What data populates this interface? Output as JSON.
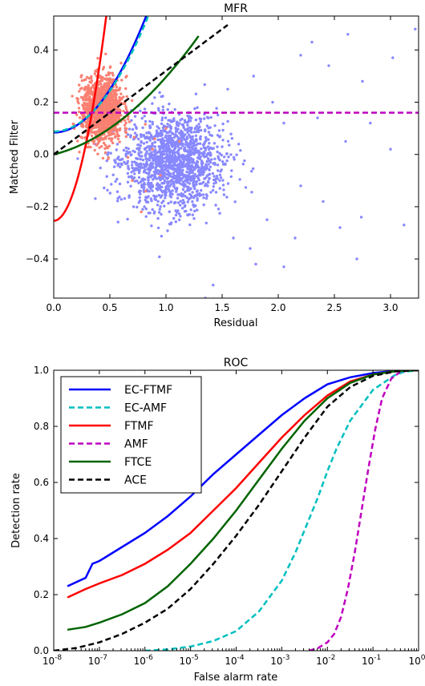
{
  "chart_data": [
    {
      "type": "scatter",
      "title": "MFR",
      "xlabel": "Residual",
      "ylabel": "Matched Filter",
      "xlim": [
        0,
        3.25
      ],
      "ylim": [
        -0.55,
        0.53
      ],
      "xticks": [
        0.0,
        0.5,
        1.0,
        1.5,
        2.0,
        2.5,
        3.0
      ],
      "xtick_labels": [
        "0.0",
        "0.5",
        "1.0",
        "1.5",
        "2.0",
        "2.5",
        "3.0"
      ],
      "yticks": [
        -0.4,
        -0.2,
        0.0,
        0.2,
        0.4
      ],
      "ytick_labels": [
        "−0.4",
        "−0.2",
        "0.0",
        "0.2",
        "0.4"
      ],
      "grid": false,
      "scatter_series": [
        {
          "color": "#8888ff",
          "center": [
            1.0,
            -0.03
          ],
          "spread": [
            0.22,
            0.09
          ],
          "count": 1500,
          "outliers": [
            [
              1.55,
              0.25
            ],
            [
              1.78,
              0.3
            ],
            [
              2.2,
              0.38
            ],
            [
              2.3,
              0.43
            ],
            [
              2.45,
              0.34
            ],
            [
              2.62,
              0.46
            ],
            [
              2.75,
              0.28
            ],
            [
              3.02,
              0.37
            ],
            [
              3.22,
              0.48
            ],
            [
              1.95,
              0.2
            ],
            [
              2.05,
              0.12
            ],
            [
              2.35,
              0.14
            ],
            [
              2.6,
              0.05
            ],
            [
              2.82,
              0.12
            ],
            [
              3.0,
              0.02
            ],
            [
              2.2,
              -0.12
            ],
            [
              2.4,
              -0.18
            ],
            [
              2.74,
              -0.24
            ],
            [
              3.12,
              -0.27
            ],
            [
              2.55,
              -0.28
            ],
            [
              1.6,
              -0.32
            ],
            [
              1.75,
              -0.36
            ],
            [
              1.8,
              -0.42
            ],
            [
              2.05,
              -0.43
            ],
            [
              2.7,
              -0.4
            ],
            [
              1.42,
              -0.5
            ],
            [
              1.35,
              -0.55
            ],
            [
              2.15,
              -0.32
            ],
            [
              1.9,
              -0.25
            ]
          ]
        },
        {
          "color": "#fa8072",
          "center": [
            0.43,
            0.17
          ],
          "spread": [
            0.09,
            0.06
          ],
          "count": 1300,
          "outliers": [
            [
              0.9,
              0.06
            ],
            [
              0.95,
              -0.08
            ],
            [
              0.82,
              -0.14
            ],
            [
              0.78,
              -0.22
            ],
            [
              0.7,
              -0.1
            ],
            [
              0.88,
              0.02
            ],
            [
              1.0,
              0.1
            ],
            [
              1.12,
              0.05
            ],
            [
              0.65,
              0.3
            ],
            [
              0.6,
              0.35
            ]
          ]
        }
      ],
      "reference_lines": [
        {
          "name": "EC-FTMF",
          "kind": "ellipse",
          "a": 0.5,
          "b": 0.084,
          "dashed": false,
          "color": "#0000ff"
        },
        {
          "name": "EC-AMF",
          "kind": "ellipse",
          "a": 0.5,
          "b": 0.088,
          "dashed": true,
          "color": "#00bfbf",
          "xrange": [
            0,
            1.78
          ]
        },
        {
          "name": "FTMF",
          "kind": "ellipse",
          "a": 0.5,
          "b": -0.254,
          "dashed": false,
          "color": "#ff0000"
        },
        {
          "name": "AMF",
          "kind": "constant",
          "y": 0.16,
          "dashed": true,
          "color": "#bf00bf"
        },
        {
          "name": "FTCE",
          "kind": "quad",
          "a": 0.5,
          "b": 0.0,
          "dashed": false,
          "color": "#006400"
        },
        {
          "name": "ACE",
          "kind": "linear",
          "slope": 0.32,
          "dashed": true,
          "color": "#000000"
        }
      ]
    },
    {
      "type": "line",
      "title": "ROC",
      "xlabel": "False alarm rate",
      "ylabel": "Detection rate",
      "xscale": "log",
      "xlim": [
        1e-08,
        1
      ],
      "ylim": [
        0,
        1.0
      ],
      "xticks": [
        -8,
        -7,
        -6,
        -5,
        -4,
        -3,
        -2,
        -1,
        0
      ],
      "xtick_labels": [
        [
          "10",
          "-8"
        ],
        [
          "10",
          "-7"
        ],
        [
          "10",
          "-6"
        ],
        [
          "10",
          "-5"
        ],
        [
          "10",
          "-4"
        ],
        [
          "10",
          "-3"
        ],
        [
          "10",
          "-2"
        ],
        [
          "10",
          "-1"
        ],
        [
          "10",
          "0"
        ]
      ],
      "yticks": [
        0.0,
        0.2,
        0.4,
        0.6,
        0.8,
        1.0
      ],
      "ytick_labels": [
        "0.0",
        "0.2",
        "0.4",
        "0.6",
        "0.8",
        "1.0"
      ],
      "legend": "upper-left",
      "series": [
        {
          "name": "EC-FTMF",
          "color": "#0000ff",
          "dashed": false,
          "x": [
            -7.7,
            -7.3,
            -7.15,
            -7.0,
            -6.8,
            -6.5,
            -6.0,
            -5.5,
            -5.0,
            -4.5,
            -4.0,
            -3.5,
            -3.0,
            -2.5,
            -2.0,
            -1.5,
            -1.0,
            -0.5,
            0
          ],
          "y": [
            0.23,
            0.26,
            0.31,
            0.32,
            0.34,
            0.37,
            0.42,
            0.48,
            0.55,
            0.63,
            0.7,
            0.77,
            0.84,
            0.9,
            0.95,
            0.975,
            0.99,
            0.998,
            1.0
          ]
        },
        {
          "name": "EC-AMF",
          "color": "#00bfbf",
          "dashed": true,
          "x": [
            -6.0,
            -5.5,
            -5.0,
            -4.5,
            -4.0,
            -3.5,
            -3.0,
            -2.7,
            -2.5,
            -2.2,
            -2.0,
            -1.8,
            -1.5,
            -1.0,
            -0.5,
            -0.3,
            0
          ],
          "y": [
            0.0,
            0.005,
            0.015,
            0.035,
            0.07,
            0.14,
            0.25,
            0.35,
            0.43,
            0.55,
            0.64,
            0.72,
            0.82,
            0.93,
            0.985,
            0.995,
            1.0
          ]
        },
        {
          "name": "FTMF",
          "color": "#ff0000",
          "dashed": false,
          "x": [
            -7.7,
            -7.3,
            -7.0,
            -6.5,
            -6.0,
            -5.5,
            -5.0,
            -4.5,
            -4.0,
            -3.5,
            -3.0,
            -2.5,
            -2.0,
            -1.5,
            -1.0,
            -0.5,
            -0.3,
            0
          ],
          "y": [
            0.19,
            0.22,
            0.24,
            0.27,
            0.31,
            0.36,
            0.42,
            0.5,
            0.58,
            0.67,
            0.76,
            0.84,
            0.91,
            0.96,
            0.985,
            0.997,
            0.999,
            1.0
          ]
        },
        {
          "name": "AMF",
          "color": "#bf00bf",
          "dashed": true,
          "x": [
            -2.4,
            -2.2,
            -2.0,
            -1.85,
            -1.7,
            -1.55,
            -1.4,
            -1.25,
            -1.1,
            -0.95,
            -0.8,
            -0.6,
            -0.4,
            -0.2,
            0
          ],
          "y": [
            0.0,
            0.01,
            0.03,
            0.06,
            0.12,
            0.22,
            0.35,
            0.5,
            0.65,
            0.79,
            0.9,
            0.97,
            0.995,
            0.999,
            1.0
          ]
        },
        {
          "name": "FTCE",
          "color": "#006400",
          "dashed": false,
          "x": [
            -7.7,
            -7.3,
            -7.0,
            -6.5,
            -6.0,
            -5.5,
            -5.0,
            -4.5,
            -4.0,
            -3.5,
            -3.0,
            -2.5,
            -2.0,
            -1.5,
            -1.0,
            -0.5,
            -0.2,
            0
          ],
          "y": [
            0.075,
            0.085,
            0.1,
            0.13,
            0.17,
            0.23,
            0.31,
            0.4,
            0.5,
            0.61,
            0.72,
            0.82,
            0.9,
            0.955,
            0.985,
            0.997,
            0.999,
            1.0
          ]
        },
        {
          "name": "ACE",
          "color": "#000000",
          "dashed": true,
          "x": [
            -8.0,
            -7.5,
            -7.0,
            -6.5,
            -6.0,
            -5.5,
            -5.0,
            -4.5,
            -4.0,
            -3.5,
            -3.0,
            -2.5,
            -2.0,
            -1.5,
            -1.0,
            -0.5,
            -0.2,
            0
          ],
          "y": [
            0.0,
            0.01,
            0.03,
            0.06,
            0.1,
            0.15,
            0.22,
            0.31,
            0.41,
            0.52,
            0.64,
            0.76,
            0.87,
            0.94,
            0.98,
            0.996,
            0.999,
            1.0
          ]
        }
      ]
    }
  ]
}
